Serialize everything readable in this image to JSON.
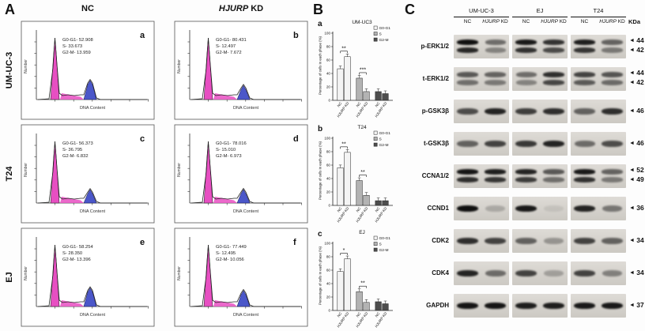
{
  "panelA": {
    "label": "A",
    "col_headers": [
      "NC",
      "HJURP KD"
    ],
    "xlabel": "DNA Content",
    "ylabel": "Number",
    "stat_keys": [
      "G0-G1",
      "S",
      "G2-M"
    ],
    "rows": [
      {
        "name": "UM-UC-3",
        "plots": [
          {
            "letter": "a",
            "stats": {
              "G0-G1": "52.908",
              "S": "33.673",
              "G2-M": "13.959"
            }
          },
          {
            "letter": "b",
            "stats": {
              "G0-G1": "80.431",
              "S": "12.497",
              "G2-M": "7.672"
            }
          }
        ]
      },
      {
        "name": "T24",
        "plots": [
          {
            "letter": "c",
            "stats": {
              "G0-G1": "56.373",
              "S": "36.795",
              "G2-M": "6.832"
            }
          },
          {
            "letter": "d",
            "stats": {
              "G0-G1": "78.016",
              "S": "15.010",
              "G2-M": "6.973"
            }
          }
        ]
      },
      {
        "name": "EJ",
        "plots": [
          {
            "letter": "e",
            "stats": {
              "G0-G1": "58.254",
              "S": "28.350",
              "G2-M": "13.396"
            }
          },
          {
            "letter": "f",
            "stats": {
              "G0-G1": "77.449",
              "S": "12.495",
              "G2-M": "10.056"
            }
          }
        ]
      }
    ]
  },
  "panelB": {
    "label": "B",
    "ylabel": "Percentage of cells in each phase (%)",
    "x_tick_labels": [
      "NC",
      "HJURP KD"
    ],
    "legend": [
      "G0-G1",
      "S",
      "G2-M"
    ],
    "colors": {
      "G0-G1": "#f4f4f4",
      "S": "#b3b3b3",
      "G2-M": "#4d4d4d"
    }
  },
  "chart_data": [
    {
      "type": "bar",
      "letter": "a",
      "title": "UM-UC3",
      "ylabel": "Percentage of cells in each phase (%)",
      "ylim": [
        0,
        100
      ],
      "yticks": [
        0,
        20,
        40,
        60,
        80,
        100
      ],
      "categories": [
        "G0-G1",
        "S",
        "G2-M"
      ],
      "series": [
        {
          "name": "NC",
          "values": [
            47,
            33,
            13
          ]
        },
        {
          "name": "HJURP KD",
          "values": [
            65,
            13,
            10
          ]
        }
      ],
      "error": 3,
      "significance": [
        {
          "category": "G0-G1",
          "label": "**"
        },
        {
          "category": "S",
          "label": "***"
        }
      ],
      "legend": [
        "G0-G1",
        "S",
        "G2-M"
      ],
      "legend_position": "top-right"
    },
    {
      "type": "bar",
      "letter": "b",
      "title": "T24",
      "ylabel": "Percentage of cells in each phase (%)",
      "ylim": [
        0,
        100
      ],
      "yticks": [
        0,
        20,
        40,
        60,
        80,
        100
      ],
      "categories": [
        "G0-G1",
        "S",
        "G2-M"
      ],
      "series": [
        {
          "name": "NC",
          "values": [
            56,
            37,
            7
          ]
        },
        {
          "name": "HJURP KD",
          "values": [
            79,
            15,
            7
          ]
        }
      ],
      "error": 3,
      "significance": [
        {
          "category": "G0-G1",
          "label": "**"
        },
        {
          "category": "S",
          "label": "**"
        }
      ],
      "legend": [
        "G0-G1",
        "S",
        "G2-M"
      ],
      "legend_position": "top-right"
    },
    {
      "type": "bar",
      "letter": "c",
      "title": "EJ",
      "ylabel": "Percentage of cells in each phase (%)",
      "ylim": [
        0,
        100
      ],
      "yticks": [
        0,
        20,
        40,
        60,
        80,
        100
      ],
      "categories": [
        "G0-G1",
        "S",
        "G2-M"
      ],
      "series": [
        {
          "name": "NC",
          "values": [
            58,
            28,
            13
          ]
        },
        {
          "name": "HJURP KD",
          "values": [
            77,
            12,
            10
          ]
        }
      ],
      "error": 3,
      "significance": [
        {
          "category": "G0-G1",
          "label": "*"
        },
        {
          "category": "S",
          "label": "**"
        }
      ],
      "legend": [
        "G0-G1",
        "S",
        "G2-M"
      ],
      "legend_position": "top-right"
    }
  ],
  "panelC": {
    "label": "C",
    "kda": "KDa",
    "groups": [
      "UM-UC-3",
      "EJ",
      "T24"
    ],
    "lane_labels": [
      "NC",
      "HJURP KD"
    ],
    "rows": [
      {
        "name": "p-ERK1/2",
        "markers": [
          44,
          42
        ],
        "bands": "double",
        "intensities": [
          0.95,
          0.5,
          0.9,
          0.78,
          0.88,
          0.55
        ]
      },
      {
        "name": "t-ERK1/2",
        "markers": [
          44,
          42
        ],
        "bands": "double",
        "intensities": [
          0.6,
          0.55,
          0.5,
          0.8,
          0.7,
          0.62
        ]
      },
      {
        "name": "p-GSK3β",
        "markers": [
          46
        ],
        "bands": "single",
        "intensities": [
          0.65,
          0.85,
          0.72,
          0.8,
          0.55,
          0.8
        ]
      },
      {
        "name": "t-GSK3β",
        "markers": [
          46
        ],
        "bands": "single",
        "intensities": [
          0.55,
          0.7,
          0.75,
          0.85,
          0.5,
          0.65
        ]
      },
      {
        "name": "CCNA1/2",
        "markers": [
          52,
          49
        ],
        "bands": "double",
        "intensities": [
          0.92,
          0.88,
          0.85,
          0.6,
          0.9,
          0.55
        ]
      },
      {
        "name": "CCND1",
        "markers": [
          36
        ],
        "bands": "single",
        "intensities": [
          0.95,
          0.2,
          0.9,
          0.08,
          0.85,
          0.45
        ]
      },
      {
        "name": "CDK2",
        "markers": [
          34
        ],
        "bands": "single",
        "intensities": [
          0.8,
          0.7,
          0.55,
          0.3,
          0.7,
          0.55
        ]
      },
      {
        "name": "CDK4",
        "markers": [
          34
        ],
        "bands": "single",
        "intensities": [
          0.85,
          0.5,
          0.7,
          0.25,
          0.7,
          0.4
        ]
      },
      {
        "name": "GAPDH",
        "markers": [
          37
        ],
        "bands": "single",
        "intensities": [
          0.92,
          0.92,
          0.88,
          0.88,
          0.9,
          0.9
        ]
      }
    ]
  }
}
